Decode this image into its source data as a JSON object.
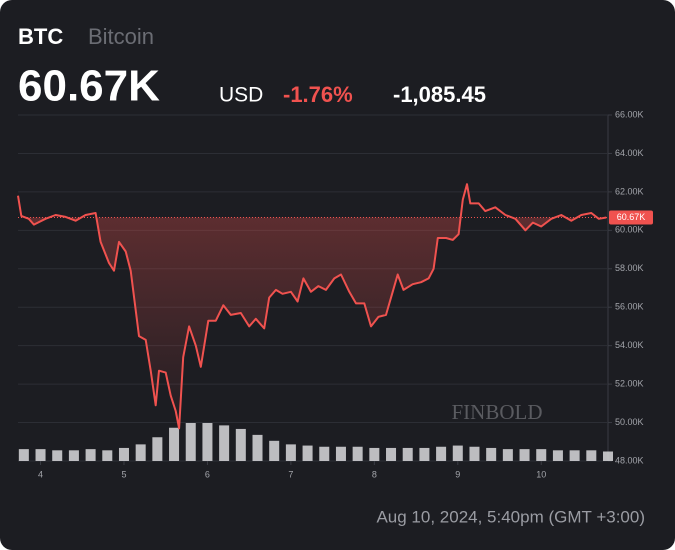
{
  "chart_data": {
    "type": "line",
    "symbol": "BTC",
    "name": "Bitcoin",
    "price": "60.67K",
    "currency": "USD",
    "change_percent": "-1.76%",
    "change": "-1,085.45",
    "timestamp": "Aug 10, 2024, 5:40pm (GMT +3:00)",
    "watermark": "FINBOLD",
    "series": [
      {
        "name": "BTC",
        "color": "#f0524f",
        "x": [
          3.73,
          3.77,
          3.86,
          3.92,
          4.06,
          4.18,
          4.3,
          4.42,
          4.54,
          4.66,
          4.72,
          4.82,
          4.88,
          4.94,
          5.02,
          5.08,
          5.18,
          5.26,
          5.32,
          5.38,
          5.42,
          5.5,
          5.56,
          5.62,
          5.66,
          5.71,
          5.78,
          5.86,
          5.92,
          6.01,
          6.1,
          6.19,
          6.28,
          6.4,
          6.5,
          6.58,
          6.68,
          6.74,
          6.82,
          6.9,
          7.0,
          7.08,
          7.15,
          7.24,
          7.33,
          7.42,
          7.52,
          7.6,
          7.7,
          7.78,
          7.88,
          7.96,
          8.05,
          8.14,
          8.22,
          8.28,
          8.35,
          8.46,
          8.56,
          8.65,
          8.71,
          8.76,
          8.86,
          8.94,
          9.01,
          9.06,
          9.11,
          9.15,
          9.25,
          9.33,
          9.45,
          9.57,
          9.69,
          9.81,
          9.9,
          10.0,
          10.12,
          10.24,
          10.36,
          10.48,
          10.6,
          10.69,
          10.78
        ],
        "values": [
          61.8,
          60.75,
          60.6,
          60.3,
          60.6,
          60.8,
          60.7,
          60.5,
          60.8,
          60.9,
          59.4,
          58.3,
          57.9,
          59.4,
          58.9,
          57.9,
          54.5,
          54.3,
          52.7,
          50.9,
          52.7,
          52.6,
          51.4,
          50.6,
          49.7,
          53.4,
          55.0,
          54.0,
          52.9,
          55.3,
          55.3,
          56.1,
          55.6,
          55.7,
          55.0,
          55.4,
          54.9,
          56.5,
          56.9,
          56.7,
          56.8,
          56.3,
          57.5,
          56.8,
          57.1,
          56.9,
          57.5,
          57.7,
          56.8,
          56.2,
          56.2,
          55.0,
          55.5,
          55.6,
          56.8,
          57.7,
          56.9,
          57.2,
          57.3,
          57.5,
          58.0,
          59.6,
          59.6,
          59.5,
          59.8,
          61.6,
          62.4,
          61.4,
          61.4,
          61.0,
          61.2,
          60.8,
          60.6,
          60.0,
          60.4,
          60.2,
          60.6,
          60.8,
          60.5,
          60.8,
          60.9,
          60.6,
          60.67
        ]
      }
    ],
    "volume": {
      "color": "#d9d9dc",
      "x": [
        3.8,
        4.0,
        4.2,
        4.4,
        4.6,
        4.8,
        5.0,
        5.2,
        5.4,
        5.6,
        5.8,
        6.0,
        6.2,
        6.4,
        6.6,
        6.8,
        7.0,
        7.2,
        7.4,
        7.6,
        7.8,
        8.0,
        8.2,
        8.4,
        8.6,
        8.8,
        9.0,
        9.2,
        9.4,
        9.6,
        9.8,
        10.0,
        10.2,
        10.4,
        10.6,
        10.8
      ],
      "values": [
        10,
        10,
        9,
        9,
        10,
        9,
        11,
        14,
        20,
        28,
        32,
        32,
        30,
        27,
        22,
        17,
        14,
        13,
        12,
        12,
        12,
        11,
        11,
        11,
        11,
        12,
        13,
        12,
        11,
        10,
        10,
        10,
        9,
        9,
        9,
        8
      ]
    },
    "last_price": 60.67,
    "last_price_label": "60.67K",
    "xlim": [
      3.73,
      10.8
    ],
    "xticks": [
      4,
      5,
      6,
      7,
      8,
      9,
      10
    ],
    "ylim": [
      48,
      66
    ],
    "yticks": [
      {
        "value": 48,
        "label": "48.00K"
      },
      {
        "value": 50,
        "label": "50.00K"
      },
      {
        "value": 52,
        "label": "52.00K"
      },
      {
        "value": 54,
        "label": "54.00K"
      },
      {
        "value": 56,
        "label": "56.00K"
      },
      {
        "value": 58,
        "label": "58.00K"
      },
      {
        "value": 60,
        "label": "60.00K"
      },
      {
        "value": 62,
        "label": "62.00K"
      },
      {
        "value": 64,
        "label": "64.00K"
      },
      {
        "value": 66,
        "label": "66.00K"
      }
    ],
    "grid": true
  }
}
